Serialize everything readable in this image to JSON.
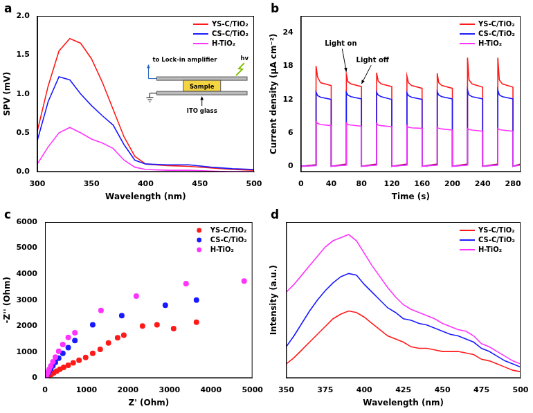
{
  "chart_data": [
    {
      "panel": "a",
      "type": "line",
      "x_label": "Wavelength (nm)",
      "y_label": "SPV (mV)",
      "x": [
        300,
        310,
        320,
        330,
        340,
        350,
        360,
        370,
        380,
        390,
        400,
        420,
        440,
        460,
        480,
        500
      ],
      "series": [
        {
          "name": "YS-C/TiO₂",
          "color": "#ff1a1a",
          "values": [
            0.52,
            1.1,
            1.55,
            1.71,
            1.65,
            1.45,
            1.15,
            0.8,
            0.45,
            0.2,
            0.1,
            0.08,
            0.07,
            0.05,
            0.03,
            0.02
          ]
        },
        {
          "name": "CS-C/TiO₂",
          "color": "#1a1aff",
          "values": [
            0.4,
            0.9,
            1.22,
            1.18,
            1.0,
            0.85,
            0.72,
            0.6,
            0.35,
            0.15,
            0.1,
            0.09,
            0.09,
            0.06,
            0.04,
            0.03
          ]
        },
        {
          "name": "H-TiO₂",
          "color": "#ff33ff",
          "values": [
            0.1,
            0.32,
            0.5,
            0.57,
            0.5,
            0.42,
            0.37,
            0.3,
            0.15,
            0.06,
            0.03,
            0.02,
            0.02,
            0.01,
            0,
            0
          ]
        }
      ],
      "xlim": [
        300,
        500
      ],
      "xticks": [
        300,
        350,
        400,
        450,
        500
      ],
      "ylim": [
        0,
        2
      ],
      "yticks": [
        {
          "value": 0,
          "label": "0.0"
        },
        0.5,
        {
          "value": 1,
          "label": "1.0"
        },
        1.5,
        {
          "value": 2,
          "label": "2.0"
        }
      ],
      "annotations": [
        "hv",
        "to Lock-in amplifier",
        "Sample",
        "ITO glass"
      ],
      "grid": false,
      "legend": "upper right"
    },
    {
      "panel": "b",
      "type": "line",
      "x_label": "Time (s)",
      "y_label": "Current density (μA cm⁻²)",
      "x": [
        0,
        20,
        20,
        22,
        26,
        40,
        40,
        60,
        60,
        62,
        66,
        80,
        80,
        100,
        100,
        102,
        106,
        120,
        120,
        140,
        140,
        142,
        146,
        160,
        160,
        180,
        180,
        182,
        186,
        200,
        200,
        220,
        220,
        222,
        226,
        240,
        240,
        260,
        260,
        262,
        266,
        280,
        280,
        290
      ],
      "series": [
        {
          "name": "YS-C/TiO₂",
          "color": "#ff1a1a",
          "values": [
            0,
            0.3,
            18,
            16,
            15,
            14.5,
            0,
            0.4,
            16.5,
            15.2,
            14.8,
            14.3,
            0,
            0.4,
            16.8,
            15.3,
            14.8,
            14.3,
            0,
            0.4,
            16.2,
            15,
            14.5,
            14,
            0,
            0.4,
            16.7,
            15,
            14.5,
            14,
            0,
            0.4,
            19.5,
            15.5,
            14.8,
            14.2,
            0,
            0.4,
            19.5,
            15.5,
            14.8,
            14.2,
            0,
            0.4
          ]
        },
        {
          "name": "CS-C/TiO₂",
          "color": "#1a1aff",
          "values": [
            0,
            0.2,
            13.3,
            12.7,
            12.4,
            12,
            0,
            0.3,
            13.3,
            12.8,
            12.5,
            12.1,
            0,
            0.3,
            13.3,
            12.8,
            12.5,
            12,
            0,
            0.3,
            13.2,
            12.7,
            12.4,
            12,
            0,
            0.3,
            13.4,
            12.8,
            12.5,
            12.1,
            0,
            0.3,
            13.7,
            12.8,
            12.5,
            12.1,
            0,
            0.3,
            13.7,
            12.8,
            12.5,
            12.1,
            0,
            0.3
          ]
        },
        {
          "name": "H-TiO₂",
          "color": "#ff33ff",
          "values": [
            0,
            0.1,
            8,
            7.7,
            7.5,
            7.3,
            0,
            0.2,
            7.8,
            7.5,
            7.4,
            7.2,
            0,
            0.2,
            7.7,
            7.4,
            7.3,
            7.1,
            0,
            0.2,
            7.3,
            7,
            6.9,
            6.8,
            0,
            0.2,
            7,
            6.8,
            6.7,
            6.5,
            0,
            0.2,
            6.8,
            6.6,
            6.5,
            6.3,
            0,
            0.2,
            6.8,
            6.6,
            6.5,
            6.3,
            0,
            0.2
          ]
        }
      ],
      "xlim": [
        0,
        290
      ],
      "xticks": [
        0,
        40,
        80,
        120,
        160,
        200,
        240,
        280
      ],
      "ylim": [
        -1,
        27
      ],
      "yticks": [
        0,
        6,
        12,
        18,
        24
      ],
      "annotations": [
        "Light on",
        "Light off"
      ],
      "grid": false,
      "legend": "upper right"
    },
    {
      "panel": "c",
      "type": "scatter",
      "x_label": "Z' (Ohm)",
      "y_label": "-Z'' (Ohm)",
      "marker": "circle",
      "series": [
        {
          "name": "YS-C/TiO₂",
          "color": "#ff1a1a",
          "x": [
            0,
            30,
            60,
            100,
            150,
            210,
            280,
            360,
            450,
            560,
            680,
            820,
            980,
            1150,
            1330,
            1530,
            1750,
            1900,
            2350,
            2700,
            3100,
            3650
          ],
          "values": [
            0,
            25,
            55,
            95,
            140,
            200,
            265,
            335,
            410,
            490,
            580,
            680,
            790,
            950,
            1100,
            1350,
            1550,
            1650,
            2000,
            2050,
            1900,
            2150
          ]
        },
        {
          "name": "CS-C/TiO₂",
          "color": "#1a1aff",
          "x": [
            0,
            20,
            40,
            70,
            100,
            140,
            190,
            250,
            330,
            430,
            560,
            720,
            1150,
            1850,
            2900,
            3650
          ],
          "values": [
            0,
            40,
            100,
            170,
            250,
            350,
            470,
            600,
            760,
            950,
            1170,
            1440,
            2050,
            2400,
            2800,
            3000
          ]
        },
        {
          "name": "H-TiO₂",
          "color": "#ff33ff",
          "x": [
            0,
            20,
            40,
            70,
            100,
            140,
            190,
            250,
            330,
            430,
            560,
            720,
            1350,
            2200,
            3400,
            4800
          ],
          "values": [
            0,
            50,
            120,
            220,
            330,
            460,
            620,
            800,
            1030,
            1290,
            1560,
            1740,
            2600,
            3150,
            3630,
            3730
          ]
        }
      ],
      "xlim": [
        0,
        5000
      ],
      "xticks": [
        0,
        1000,
        2000,
        3000,
        4000,
        5000
      ],
      "ylim": [
        0,
        6000
      ],
      "yticks": [
        0,
        1000,
        2000,
        3000,
        4000,
        5000,
        6000
      ],
      "grid": false,
      "legend": "upper right"
    },
    {
      "panel": "d",
      "type": "line",
      "x_label": "Wavelength (nm)",
      "y_label": "Intensity (a.u.)",
      "x": [
        350,
        355,
        360,
        365,
        370,
        375,
        380,
        385,
        390,
        395,
        400,
        405,
        410,
        415,
        420,
        425,
        430,
        435,
        440,
        445,
        450,
        455,
        460,
        465,
        470,
        475,
        480,
        485,
        490,
        495,
        500
      ],
      "series": [
        {
          "name": "YS-C/TiO₂",
          "color": "#ff1a1a",
          "values": [
            0.09,
            0.13,
            0.18,
            0.23,
            0.28,
            0.33,
            0.38,
            0.41,
            0.43,
            0.42,
            0.39,
            0.35,
            0.31,
            0.27,
            0.25,
            0.23,
            0.2,
            0.19,
            0.19,
            0.18,
            0.17,
            0.17,
            0.17,
            0.16,
            0.15,
            0.12,
            0.11,
            0.09,
            0.07,
            0.05,
            0.04
          ]
        },
        {
          "name": "CS-C/TiO₂",
          "color": "#1a1aff",
          "values": [
            0.2,
            0.27,
            0.35,
            0.43,
            0.5,
            0.56,
            0.61,
            0.65,
            0.67,
            0.66,
            0.6,
            0.55,
            0.5,
            0.45,
            0.42,
            0.38,
            0.37,
            0.35,
            0.34,
            0.32,
            0.3,
            0.28,
            0.27,
            0.25,
            0.23,
            0.19,
            0.17,
            0.14,
            0.11,
            0.09,
            0.07
          ]
        },
        {
          "name": "H-TiO₂",
          "color": "#ff33ff",
          "values": [
            0.55,
            0.6,
            0.66,
            0.72,
            0.78,
            0.84,
            0.88,
            0.9,
            0.92,
            0.88,
            0.8,
            0.72,
            0.65,
            0.58,
            0.52,
            0.47,
            0.44,
            0.42,
            0.4,
            0.38,
            0.35,
            0.33,
            0.31,
            0.3,
            0.27,
            0.22,
            0.2,
            0.17,
            0.14,
            0.11,
            0.09
          ]
        }
      ],
      "xlim": [
        350,
        500
      ],
      "xticks": [
        350,
        375,
        400,
        425,
        450,
        475,
        500
      ],
      "ylim": [
        0,
        1
      ],
      "tick_labels": "x",
      "grid": false,
      "legend": "upper right"
    }
  ]
}
